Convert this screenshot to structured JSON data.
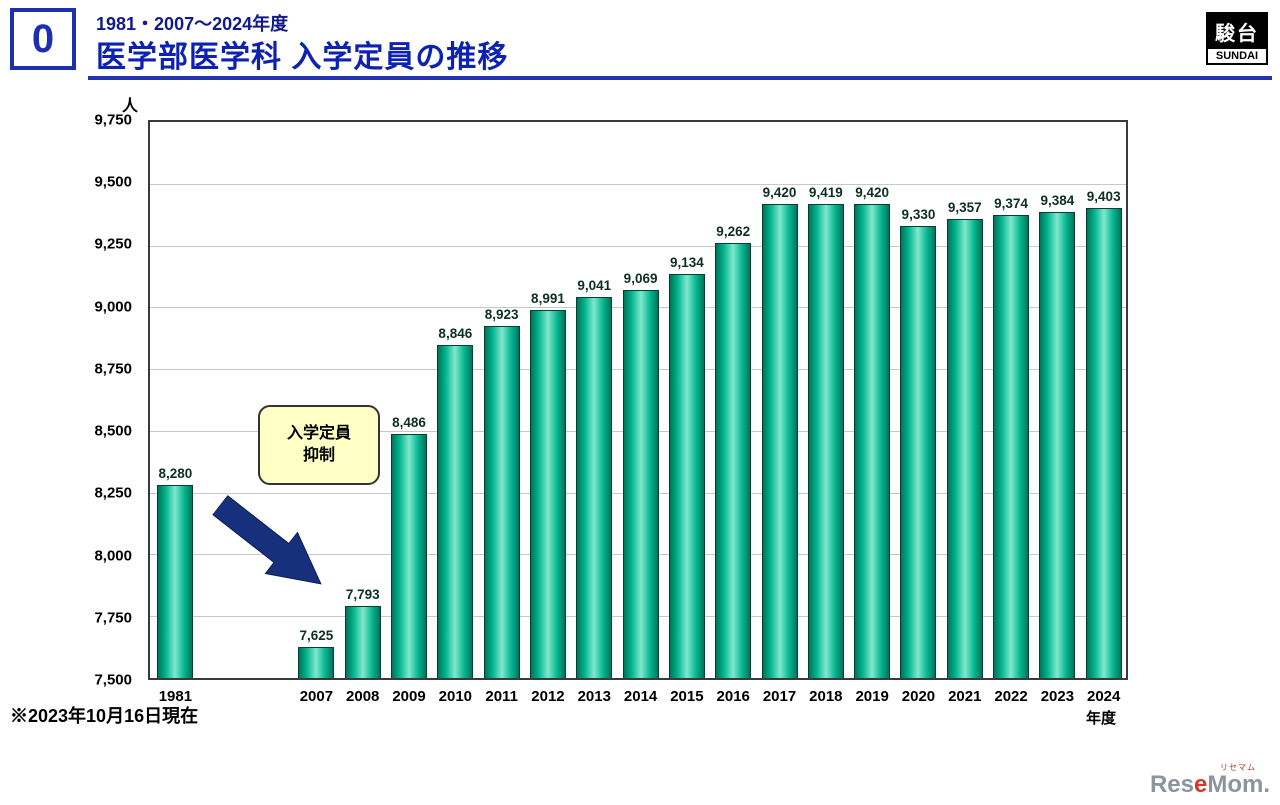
{
  "header": {
    "slide_number": "0",
    "subtitle": "1981・2007～2024年度",
    "title": "医学部医学科 入学定員の推移"
  },
  "sundai_logo": {
    "kanji": "駿台",
    "roman": "SUNDAI"
  },
  "chart_data": {
    "type": "bar",
    "title": "医学部医学科 入学定員の推移",
    "unit_label": "人",
    "xlabel": "年度",
    "ylim": [
      7500,
      9750
    ],
    "ytick_step": 250,
    "grid": true,
    "legend": false,
    "bar_color": "#00b38c",
    "yticks": [
      "9,750",
      "9,500",
      "9,250",
      "9,000",
      "8,750",
      "8,500",
      "8,250",
      "8,000",
      "7,750",
      "7,500"
    ],
    "categories": [
      "1981",
      "2007",
      "2008",
      "2009",
      "2010",
      "2011",
      "2012",
      "2013",
      "2014",
      "2015",
      "2016",
      "2017",
      "2018",
      "2019",
      "2020",
      "2021",
      "2022",
      "2023",
      "2024"
    ],
    "values": [
      8280,
      7625,
      7793,
      8486,
      8846,
      8923,
      8991,
      9041,
      9069,
      9134,
      9262,
      9420,
      9419,
      9420,
      9330,
      9357,
      9374,
      9384,
      9403
    ],
    "value_labels": [
      "8,280",
      "7,625",
      "7,793",
      "8,486",
      "8,846",
      "8,923",
      "8,991",
      "9,041",
      "9,069",
      "9,134",
      "9,262",
      "9,420",
      "9,419",
      "9,420",
      "9,330",
      "9,357",
      "9,374",
      "9,384",
      "9,403"
    ],
    "annotation": {
      "line1": "入学定員",
      "line2": "抑制",
      "arrow_color": "#16307e"
    }
  },
  "footnote": "※2023年10月16日現在",
  "resemom_logo": {
    "kana": "リセマム",
    "part1": "Res",
    "part_red": "e",
    "part2": "Mom",
    "part3": "."
  }
}
